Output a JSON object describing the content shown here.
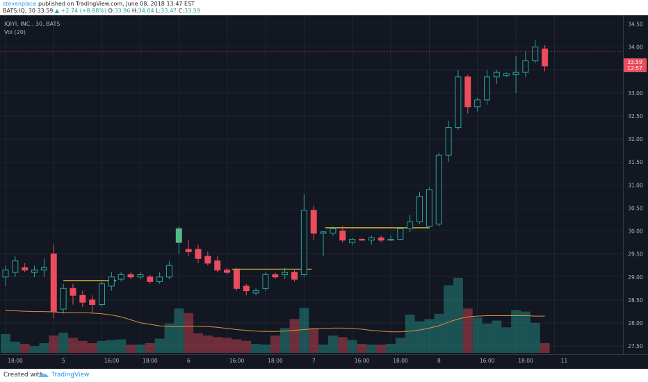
{
  "header": {
    "author": "stevenplace",
    "published": "published on TradingView.com, June 08, 2018 13:47 EST",
    "symbol": "BATS:IQ, 30",
    "last": "33.59",
    "change": "+2.74 (+8.88%)",
    "o_label": "O:",
    "o_value": "33.96",
    "h_label": "H:",
    "h_value": "34.04",
    "l_label": "L:",
    "l_value": "33.47",
    "c_label": "C:",
    "c_value": "33.59"
  },
  "legend": {
    "series": "IQIYI, INC., 30, BATS",
    "volume": "Vol (20)"
  },
  "price_badge": {
    "price": "33.59",
    "countdown": "12:57"
  },
  "footer": {
    "created": "Created with",
    "brand": "TradingView"
  },
  "colors": {
    "bg": "#131722",
    "grid": "#2a2e39",
    "up": "#26a69a",
    "up_solid": "#53b987",
    "down": "#eb4d5c",
    "level": "#f0c33c",
    "vol_ma": "#d9943f",
    "axis_text": "#b2b5be"
  },
  "chart_data": {
    "type": "candlestick",
    "y_ticks": [
      "27.50",
      "28.00",
      "28.50",
      "29.00",
      "29.50",
      "30.00",
      "30.50",
      "31.00",
      "31.50",
      "32.00",
      "32.50",
      "33.00",
      "33.50",
      "34.00",
      "34.50"
    ],
    "ylim": [
      27.35,
      34.6
    ],
    "x_ticks": [
      {
        "i": 0,
        "label": "18:00"
      },
      {
        "i": 5,
        "label": "5"
      },
      {
        "i": 10,
        "label": "16:00"
      },
      {
        "i": 14,
        "label": "18:00"
      },
      {
        "i": 18,
        "label": "6"
      },
      {
        "i": 23,
        "label": "16:00"
      },
      {
        "i": 27,
        "label": "18:00"
      },
      {
        "i": 31,
        "label": "7"
      },
      {
        "i": 36,
        "label": "16:00"
      },
      {
        "i": 40,
        "label": "18:00"
      },
      {
        "i": 44,
        "label": "8"
      },
      {
        "i": 49,
        "label": "16:00"
      },
      {
        "i": 53,
        "label": "18:00"
      },
      {
        "i": 57,
        "label": "11"
      }
    ],
    "candles": [
      {
        "o": 29.0,
        "h": 29.25,
        "l": 28.8,
        "c": 29.15
      },
      {
        "o": 29.1,
        "h": 29.45,
        "l": 29.0,
        "c": 29.35
      },
      {
        "o": 29.2,
        "h": 29.3,
        "l": 29.1,
        "c": 29.15
      },
      {
        "o": 29.1,
        "h": 29.25,
        "l": 29.0,
        "c": 29.15
      },
      {
        "o": 29.15,
        "h": 29.4,
        "l": 29.0,
        "c": 29.2
      },
      {
        "o": 29.5,
        "h": 29.7,
        "l": 28.1,
        "c": 28.25
      },
      {
        "o": 28.3,
        "h": 28.85,
        "l": 28.2,
        "c": 28.75
      },
      {
        "o": 28.75,
        "h": 28.85,
        "l": 28.4,
        "c": 28.6
      },
      {
        "o": 28.6,
        "h": 28.7,
        "l": 28.35,
        "c": 28.45
      },
      {
        "o": 28.5,
        "h": 28.6,
        "l": 28.2,
        "c": 28.4
      },
      {
        "o": 28.4,
        "h": 28.9,
        "l": 28.35,
        "c": 28.85
      },
      {
        "o": 28.8,
        "h": 29.1,
        "l": 28.7,
        "c": 29.0
      },
      {
        "o": 28.95,
        "h": 29.1,
        "l": 28.9,
        "c": 29.05
      },
      {
        "o": 29.05,
        "h": 29.1,
        "l": 28.95,
        "c": 29.0
      },
      {
        "o": 29.0,
        "h": 29.1,
        "l": 28.95,
        "c": 29.05
      },
      {
        "o": 29.0,
        "h": 29.05,
        "l": 28.85,
        "c": 28.9
      },
      {
        "o": 28.9,
        "h": 29.1,
        "l": 28.85,
        "c": 29.0
      },
      {
        "o": 29.0,
        "h": 29.35,
        "l": 28.95,
        "c": 29.25
      },
      {
        "o": 29.75,
        "h": 30.1,
        "l": 29.5,
        "c": 30.05
      },
      {
        "o": 29.6,
        "h": 29.8,
        "l": 29.45,
        "c": 29.55
      },
      {
        "o": 29.6,
        "h": 29.7,
        "l": 29.3,
        "c": 29.4
      },
      {
        "o": 29.45,
        "h": 29.55,
        "l": 29.25,
        "c": 29.3
      },
      {
        "o": 29.35,
        "h": 29.45,
        "l": 29.1,
        "c": 29.15
      },
      {
        "o": 29.15,
        "h": 29.2,
        "l": 29.05,
        "c": 29.1
      },
      {
        "o": 29.15,
        "h": 29.2,
        "l": 28.7,
        "c": 28.75
      },
      {
        "o": 28.8,
        "h": 28.85,
        "l": 28.6,
        "c": 28.7
      },
      {
        "o": 28.65,
        "h": 28.75,
        "l": 28.6,
        "c": 28.7
      },
      {
        "o": 28.75,
        "h": 29.1,
        "l": 28.7,
        "c": 29.05
      },
      {
        "o": 29.05,
        "h": 29.1,
        "l": 28.95,
        "c": 29.0
      },
      {
        "o": 29.05,
        "h": 29.2,
        "l": 28.95,
        "c": 29.1
      },
      {
        "o": 29.1,
        "h": 29.15,
        "l": 28.9,
        "c": 28.95
      },
      {
        "o": 29.05,
        "h": 30.8,
        "l": 29.0,
        "c": 30.45
      },
      {
        "o": 30.45,
        "h": 30.55,
        "l": 29.8,
        "c": 29.95
      },
      {
        "o": 29.95,
        "h": 30.0,
        "l": 29.45,
        "c": 29.98
      },
      {
        "o": 29.95,
        "h": 30.1,
        "l": 29.9,
        "c": 30.05
      },
      {
        "o": 30.0,
        "h": 30.1,
        "l": 29.75,
        "c": 29.8
      },
      {
        "o": 29.75,
        "h": 29.85,
        "l": 29.7,
        "c": 29.82
      },
      {
        "o": 29.82,
        "h": 29.85,
        "l": 29.78,
        "c": 29.8
      },
      {
        "o": 29.8,
        "h": 29.9,
        "l": 29.7,
        "c": 29.85
      },
      {
        "o": 29.85,
        "h": 29.9,
        "l": 29.75,
        "c": 29.8
      },
      {
        "o": 29.8,
        "h": 29.9,
        "l": 29.78,
        "c": 29.82
      },
      {
        "o": 29.82,
        "h": 30.05,
        "l": 29.8,
        "c": 30.05
      },
      {
        "o": 30.05,
        "h": 30.35,
        "l": 29.98,
        "c": 30.2
      },
      {
        "o": 30.2,
        "h": 30.85,
        "l": 30.15,
        "c": 30.75
      },
      {
        "o": 30.1,
        "h": 30.95,
        "l": 30.05,
        "c": 30.9
      },
      {
        "o": 30.15,
        "h": 31.7,
        "l": 30.1,
        "c": 31.65
      },
      {
        "o": 31.65,
        "h": 32.4,
        "l": 31.5,
        "c": 32.25
      },
      {
        "o": 32.25,
        "h": 33.5,
        "l": 32.2,
        "c": 33.35
      },
      {
        "o": 33.35,
        "h": 33.4,
        "l": 32.55,
        "c": 32.7
      },
      {
        "o": 32.7,
        "h": 32.9,
        "l": 32.6,
        "c": 32.85
      },
      {
        "o": 32.85,
        "h": 33.5,
        "l": 32.75,
        "c": 33.35
      },
      {
        "o": 33.35,
        "h": 33.5,
        "l": 33.2,
        "c": 33.45
      },
      {
        "o": 33.38,
        "h": 33.45,
        "l": 33.35,
        "c": 33.42
      },
      {
        "o": 33.4,
        "h": 33.8,
        "l": 33.0,
        "c": 33.45
      },
      {
        "o": 33.45,
        "h": 33.9,
        "l": 33.35,
        "c": 33.7
      },
      {
        "o": 33.7,
        "h": 34.15,
        "l": 33.65,
        "c": 34.0
      },
      {
        "o": 33.96,
        "h": 34.04,
        "l": 33.47,
        "c": 33.59
      }
    ],
    "volume": [
      250,
      150,
      120,
      90,
      130,
      230,
      270,
      200,
      160,
      130,
      160,
      170,
      180,
      110,
      110,
      130,
      190,
      390,
      590,
      530,
      260,
      230,
      210,
      200,
      180,
      160,
      120,
      110,
      230,
      330,
      450,
      600,
      330,
      110,
      230,
      210,
      170,
      120,
      110,
      110,
      120,
      200,
      510,
      420,
      450,
      520,
      900,
      1000,
      590,
      470,
      390,
      430,
      340,
      570,
      550,
      400,
      130
    ],
    "volume_ma": [
      560,
      560,
      555,
      550,
      550,
      545,
      540,
      535,
      535,
      530,
      520,
      505,
      480,
      440,
      400,
      380,
      360,
      350,
      350,
      355,
      355,
      350,
      340,
      325,
      310,
      300,
      290,
      285,
      285,
      290,
      300,
      310,
      320,
      325,
      330,
      330,
      325,
      315,
      300,
      290,
      280,
      280,
      290,
      305,
      330,
      360,
      410,
      450,
      480,
      490,
      495,
      495,
      495,
      495,
      495,
      490,
      490
    ],
    "levels": [
      {
        "from": 6,
        "to": 11.5,
        "price": 28.92
      },
      {
        "from": 23.5,
        "to": 31.8,
        "price": 29.17
      },
      {
        "from": 33.2,
        "to": 44.0,
        "price": 30.07
      }
    ]
  }
}
